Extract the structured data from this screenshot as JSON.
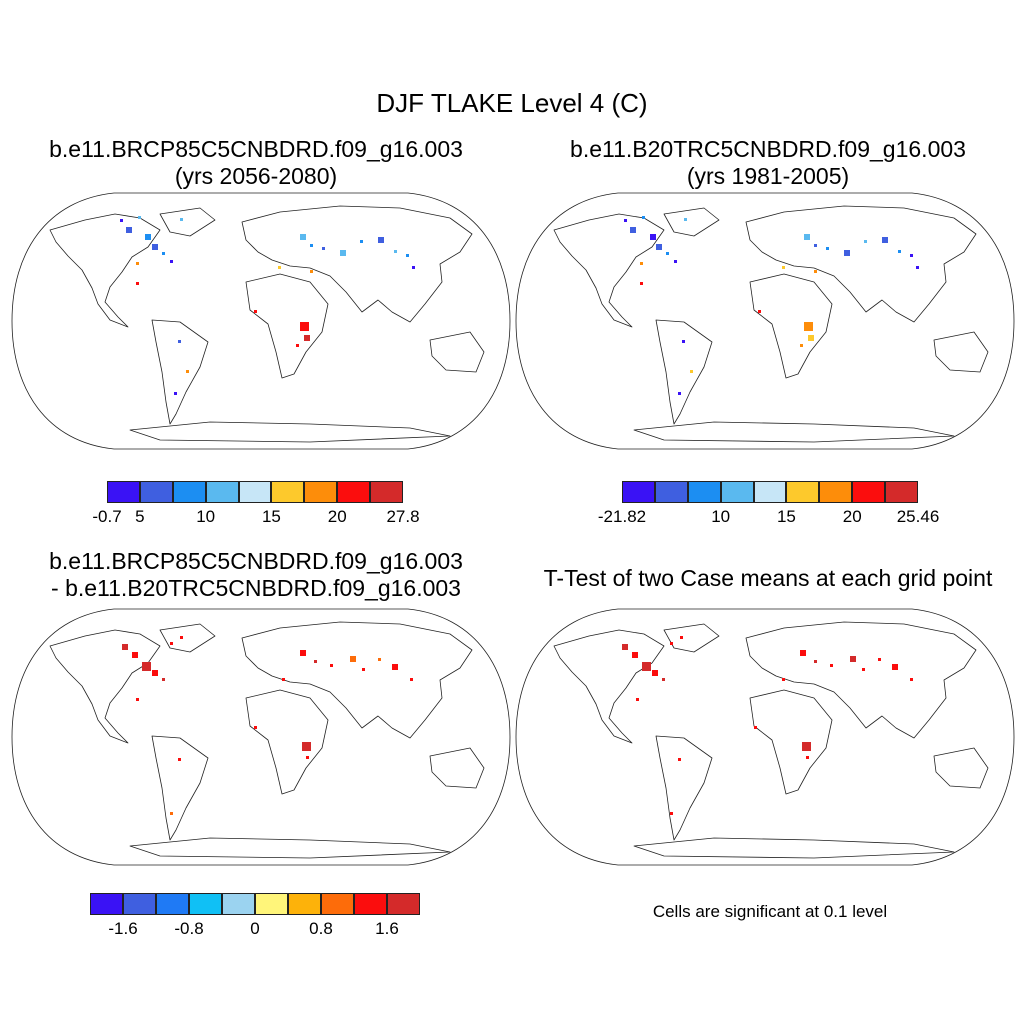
{
  "main_title": "DJF TLAKE Level 4 (C)",
  "panels": [
    {
      "title_lines": [
        "b.e11.BRCP85C5CNBDRD.f09_g16.003",
        "(yrs 2056-2080)"
      ]
    },
    {
      "title_lines": [
        "b.e11.B20TRC5CNBDRD.f09_g16.003",
        "(yrs 1981-2005)"
      ]
    },
    {
      "title_lines": [
        "b.e11.BRCP85C5CNBDRD.f09_g16.003",
        "- b.e11.B20TRC5CNBDRD.f09_g16.003"
      ]
    },
    {
      "title_lines": [
        "T-Test of two Case means at each grid point"
      ]
    }
  ],
  "colorbars": [
    {
      "colors": [
        "#3a12f5",
        "#3f5fe0",
        "#1c8ef2",
        "#5ab9ef",
        "#c7e6f7",
        "#fdc92c",
        "#fd8d0a",
        "#fb0d0d",
        "#d42a2a"
      ],
      "labels": [
        "-0.7",
        "5",
        "10",
        "15",
        "20",
        "27.8"
      ],
      "label_edges": [
        0,
        1,
        3,
        5,
        7,
        9
      ]
    },
    {
      "colors": [
        "#3a12f5",
        "#3f5fe0",
        "#1c8ef2",
        "#5ab9ef",
        "#c7e6f7",
        "#fdc92c",
        "#fd8d0a",
        "#fb0d0d",
        "#d42a2a"
      ],
      "labels": [
        "-21.82",
        "10",
        "15",
        "20",
        "25.46"
      ],
      "label_edges": [
        0,
        3,
        5,
        7,
        9
      ]
    },
    {
      "colors": [
        "#3a12f5",
        "#3f5fe0",
        "#1f7af5",
        "#10c0f5",
        "#9bd3f0",
        "#fff57a",
        "#fdb20a",
        "#fd6c0a",
        "#fb0d0d",
        "#d42a2a"
      ],
      "labels": [
        "-1.6",
        "-0.8",
        "0",
        "0.8",
        "1.6"
      ],
      "label_edges": [
        1,
        3,
        5,
        7,
        9
      ]
    }
  ],
  "significance_note": "Cells are significant at 0.1 level"
}
